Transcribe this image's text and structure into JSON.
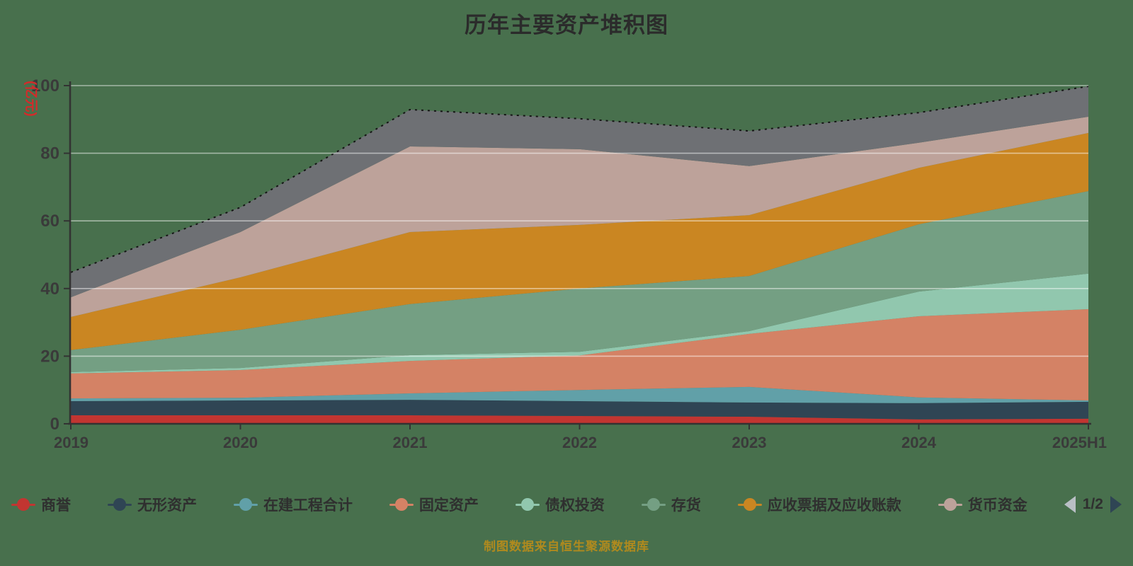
{
  "title": "历年主要资产堆积图",
  "chart_data": {
    "type": "area",
    "stacked": true,
    "title": "历年主要资产堆积图",
    "x": [
      "2019",
      "2020",
      "2021",
      "2022",
      "2023",
      "2024",
      "2025H1"
    ],
    "xlabel": "",
    "ylabel": "(亿元)",
    "ylabel_color": "#d42a2a",
    "ylim": [
      0,
      100
    ],
    "yticks": [
      0,
      20,
      40,
      60,
      80,
      100
    ],
    "grid": true,
    "legend_position": "bottom",
    "series": [
      {
        "name": "商誉",
        "color": "#c23531",
        "values": [
          2.5,
          2.5,
          2.5,
          2.3,
          2.1,
          1.3,
          1.5
        ]
      },
      {
        "name": "无形资产",
        "color": "#2f4554",
        "values": [
          4.2,
          4.4,
          4.6,
          4.4,
          4.2,
          4.8,
          5.0
        ]
      },
      {
        "name": "在建工程合计",
        "color": "#61a0a8",
        "values": [
          0.8,
          0.8,
          1.9,
          3.3,
          4.6,
          1.7,
          0.4
        ]
      },
      {
        "name": "固定资产",
        "color": "#d48265",
        "values": [
          7.4,
          8.2,
          9.6,
          10.2,
          15.7,
          24.0,
          27.0
        ]
      },
      {
        "name": "债权投资",
        "color": "#91c7ae",
        "values": [
          0.4,
          0.6,
          1.7,
          1.1,
          0.8,
          7.3,
          10.5
        ]
      },
      {
        "name": "存货",
        "color": "#749f83",
        "values": [
          6.5,
          11.3,
          15.1,
          18.7,
          16.3,
          19.9,
          24.4
        ]
      },
      {
        "name": "应收票据及应收账款",
        "color": "#ca8622",
        "values": [
          9.8,
          15.5,
          21.3,
          18.8,
          18.0,
          16.7,
          17.2
        ]
      },
      {
        "name": "货币资金",
        "color": "#bda29a",
        "values": [
          5.8,
          13.4,
          25.3,
          22.4,
          14.5,
          7.4,
          4.8
        ]
      },
      {
        "name": "",
        "color": "#6e7074",
        "in_legend": false,
        "values": [
          7.4,
          7.3,
          10.9,
          9.0,
          10.4,
          8.9,
          9.0
        ]
      }
    ]
  },
  "legend": {
    "page": "1/2"
  },
  "footer": {
    "text": "制图数据来自恒生聚源数据库"
  }
}
